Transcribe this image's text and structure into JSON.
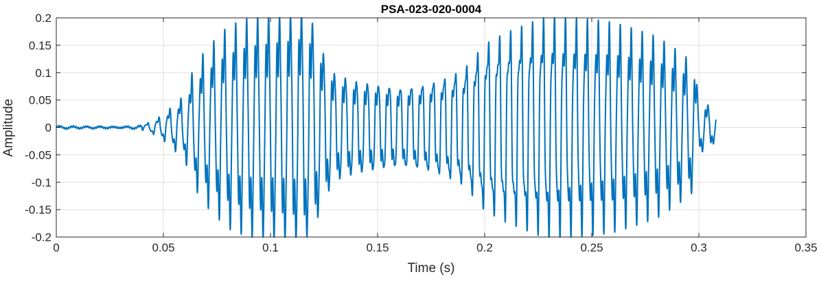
{
  "chart_data": {
    "type": "line",
    "title": "PSA-023-020-0004",
    "xlabel": "Time (s)",
    "ylabel": "Amplitude",
    "xlim": [
      0,
      0.35
    ],
    "ylim": [
      -0.2,
      0.2
    ],
    "xticks": [
      0,
      0.05,
      0.1,
      0.15,
      0.2,
      0.25,
      0.3,
      0.35
    ],
    "xtick_labels": [
      "0",
      "0.05",
      "0.1",
      "0.15",
      "0.2",
      "0.25",
      "0.3",
      "0.35"
    ],
    "yticks": [
      0.2,
      0.15,
      0.1,
      0.05,
      0,
      -0.05,
      -0.1,
      -0.15,
      -0.2
    ],
    "ytick_labels": [
      "0.2",
      "0.15",
      "0.1",
      "0.05",
      "0",
      "-0.05",
      "-0.1",
      "-0.15",
      "-0.2"
    ],
    "grid": true,
    "color": "#0072BD",
    "series": [
      {
        "x": [
          0,
          0.01,
          0.02,
          0.03,
          0.04,
          0.045,
          0.05,
          0.055,
          0.06,
          0.064,
          0.07,
          0.08,
          0.09,
          0.1,
          0.11,
          0.115,
          0.12,
          0.125,
          0.13,
          0.14,
          0.15,
          0.16,
          0.17,
          0.18,
          0.19,
          0.2,
          0.21,
          0.22,
          0.23,
          0.24,
          0.25,
          0.26,
          0.27,
          0.28,
          0.29,
          0.298,
          0.3,
          0.305,
          0.308
        ],
        "y": [
          0.003,
          0.002,
          0.002,
          0.001,
          0.004,
          0.01,
          0.02,
          0.035,
          0.05,
          0.09,
          0.12,
          0.155,
          0.17,
          0.175,
          0.18,
          0.185,
          0.17,
          0.12,
          0.09,
          0.08,
          0.075,
          0.07,
          0.075,
          0.085,
          0.1,
          0.14,
          0.155,
          0.165,
          0.175,
          0.17,
          0.165,
          0.16,
          0.15,
          0.14,
          0.12,
          0.1,
          0.04,
          0.035,
          0.02
        ]
      }
    ]
  }
}
